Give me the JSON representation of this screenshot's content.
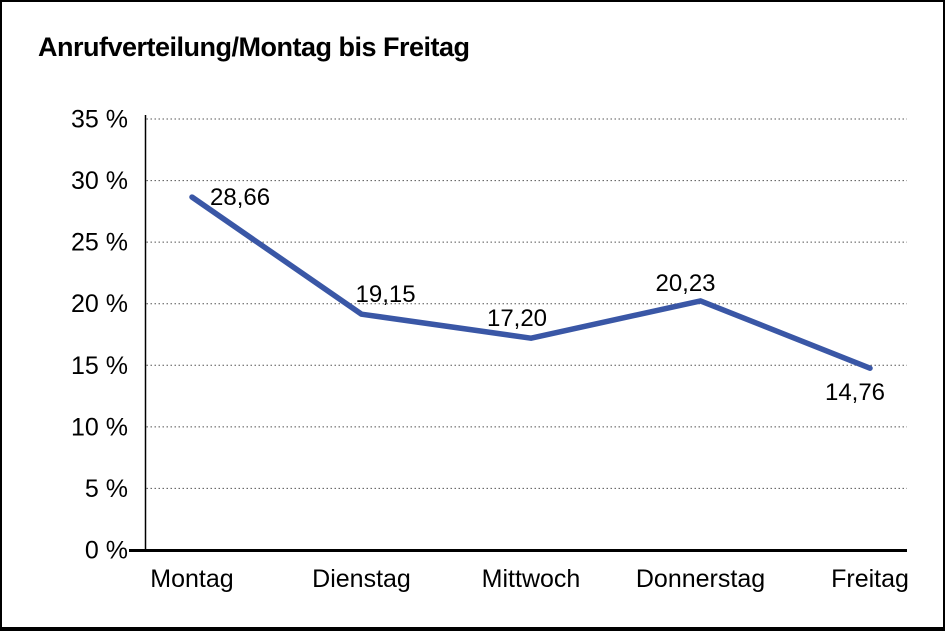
{
  "chart_data": {
    "type": "line",
    "title": "Anrufverteilung/Montag bis Freitag",
    "categories": [
      "Montag",
      "Dienstag",
      "Mittwoch",
      "Donnerstag",
      "Freitag"
    ],
    "values": [
      28.66,
      19.15,
      17.2,
      20.23,
      14.76
    ],
    "value_labels": [
      "28,66",
      "19,15",
      "17,20",
      "20,23",
      "14,76"
    ],
    "ylim": [
      0,
      35
    ],
    "ytick_step": 5,
    "ytick_labels": [
      "0 %",
      "5 %",
      "10 %",
      "15 %",
      "20 %",
      "25 %",
      "30 %",
      "35 %"
    ],
    "grid": "horizontal-dotted",
    "legend": "none",
    "xlabel": "",
    "ylabel": ""
  },
  "colors": {
    "background": "#FFFFFF",
    "border": "#000000",
    "text": "#000000",
    "gridline": "#555555",
    "axis": "#000000",
    "line": "#3A57A6"
  }
}
